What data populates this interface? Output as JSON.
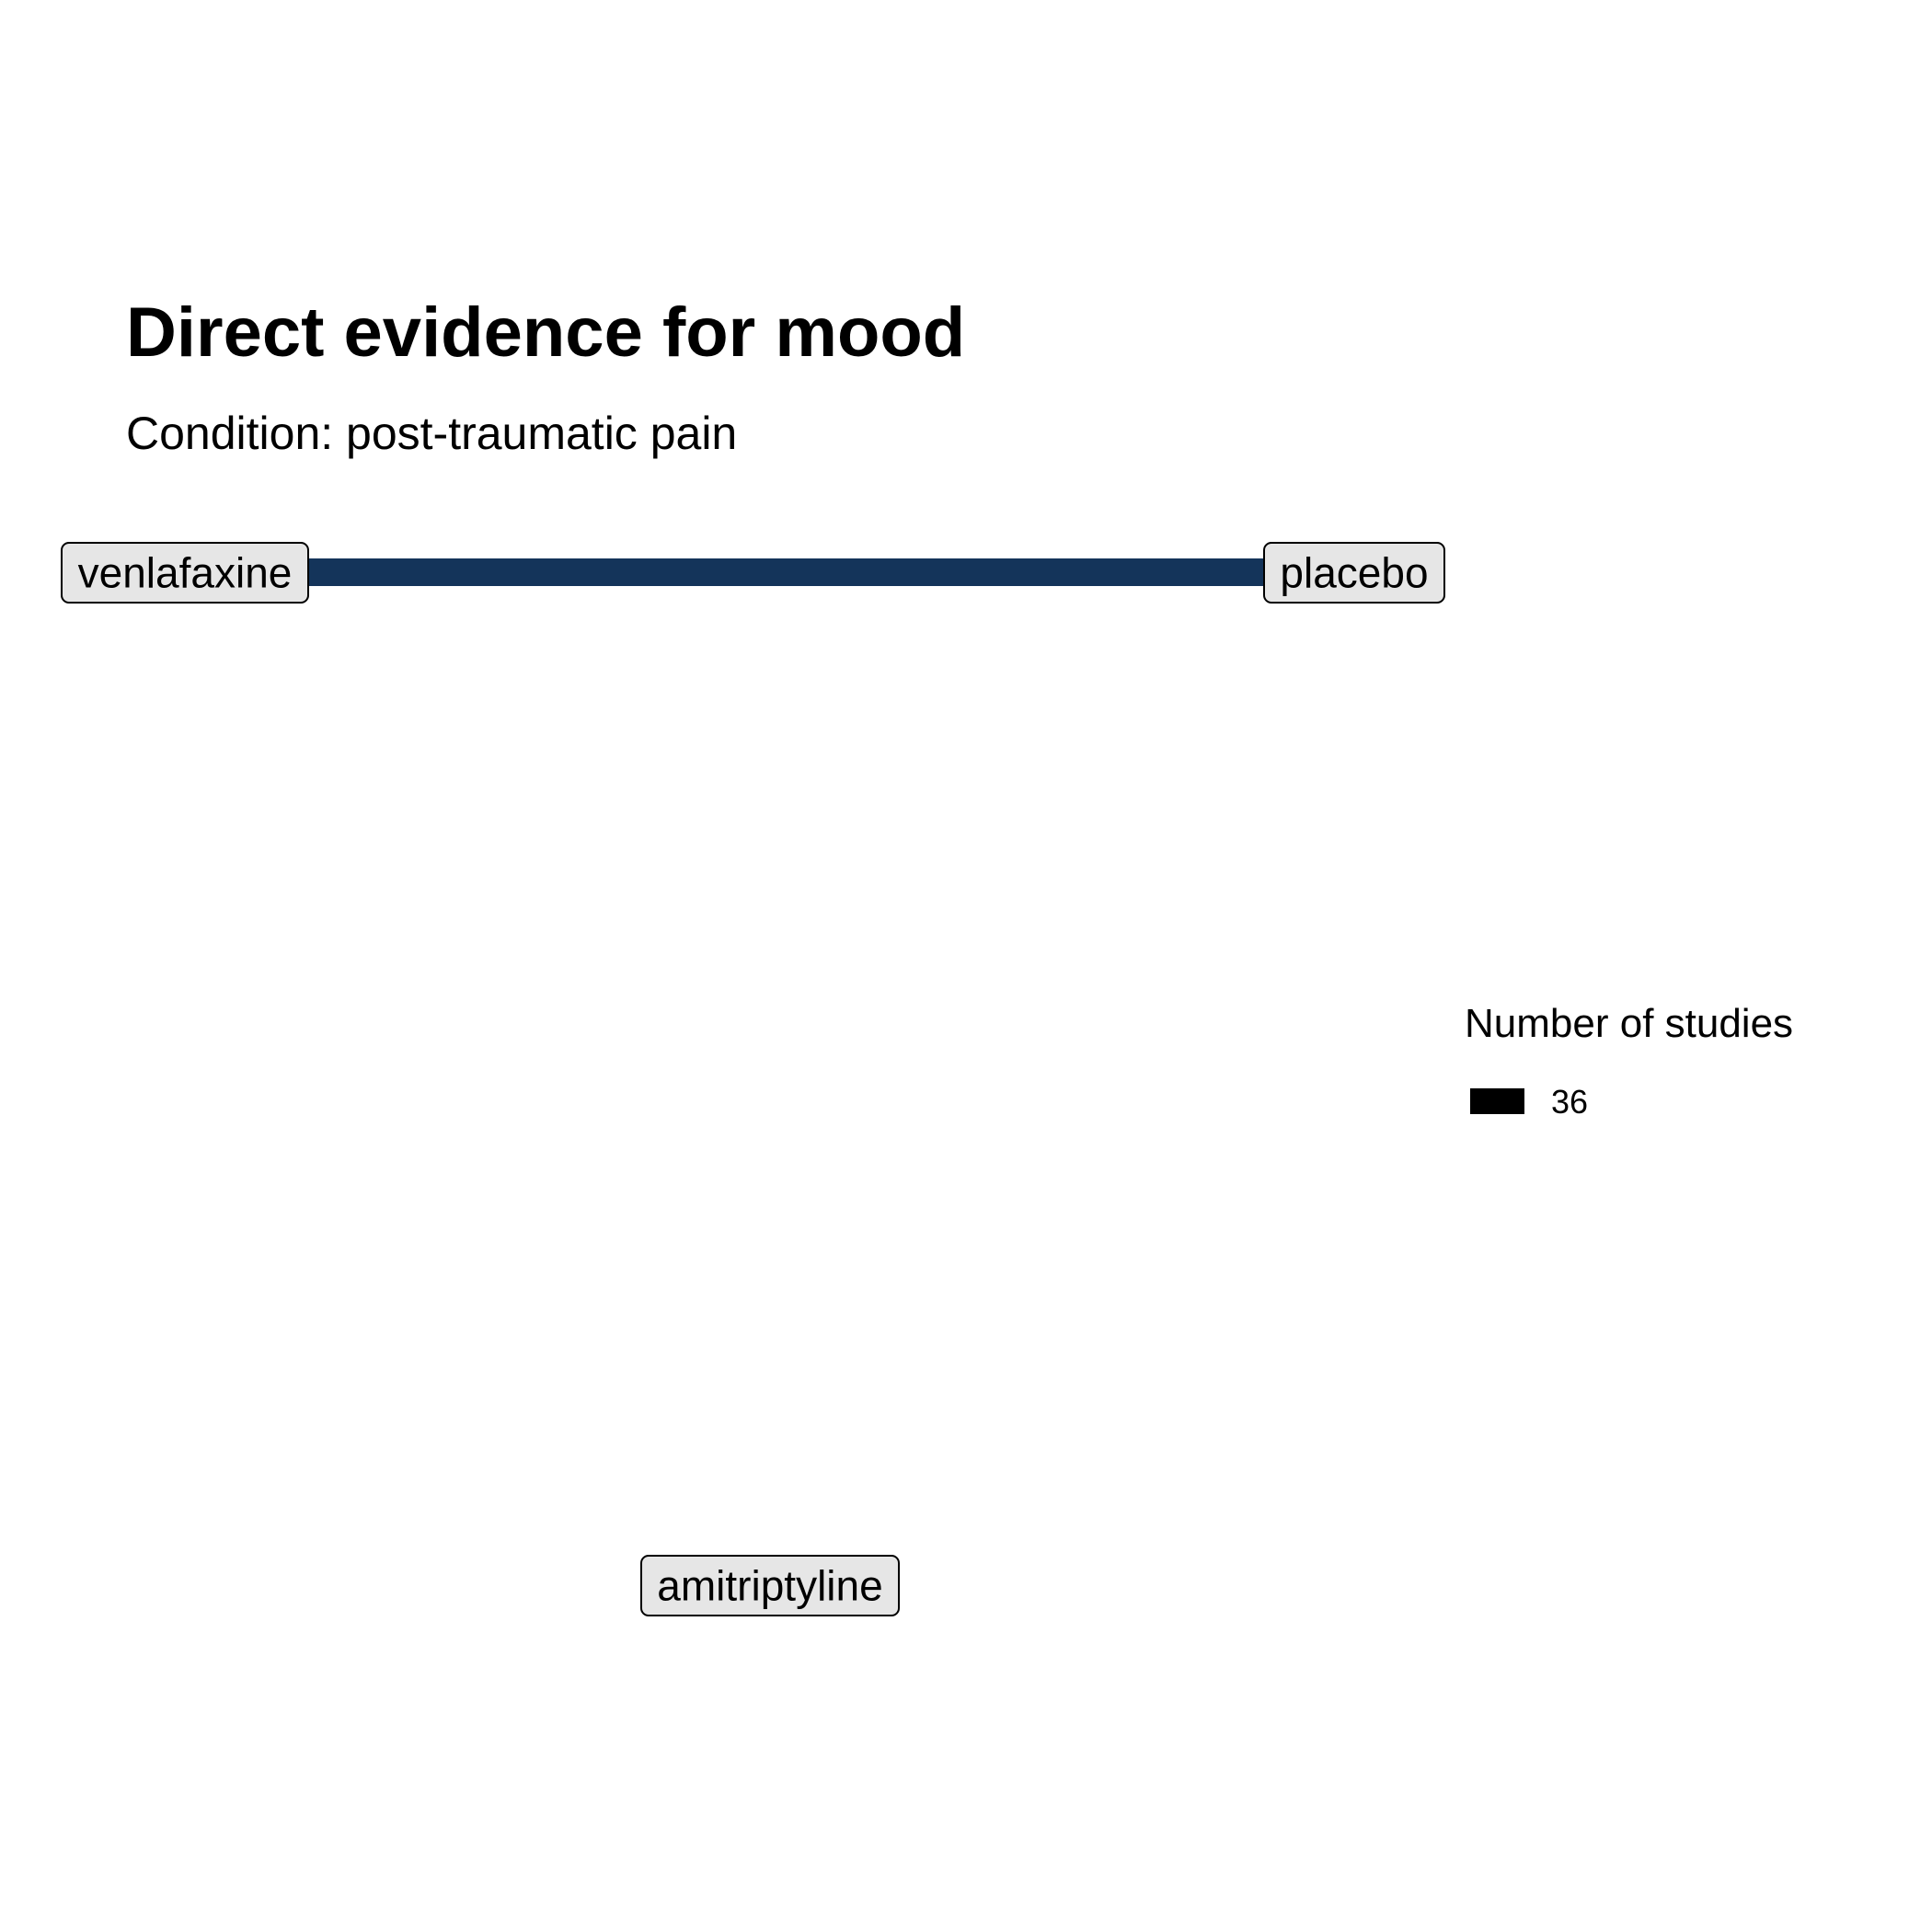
{
  "chart_data": {
    "type": "network",
    "title": "Direct evidence for mood",
    "subtitle": "Condition: post-traumatic pain",
    "nodes": [
      {
        "id": "venlafaxine",
        "label": "venlafaxine"
      },
      {
        "id": "placebo",
        "label": "placebo"
      },
      {
        "id": "amitriptyline",
        "label": "amitriptyline"
      }
    ],
    "edges": [
      {
        "from": "venlafaxine",
        "to": "placebo",
        "studies": 36
      }
    ],
    "legend": {
      "title": "Number of studies",
      "entries": [
        {
          "label": "36",
          "color": "#000000"
        }
      ]
    },
    "colors": {
      "edge": "#14345a",
      "node_fill": "#e6e6e6",
      "node_border": "#000000"
    }
  }
}
